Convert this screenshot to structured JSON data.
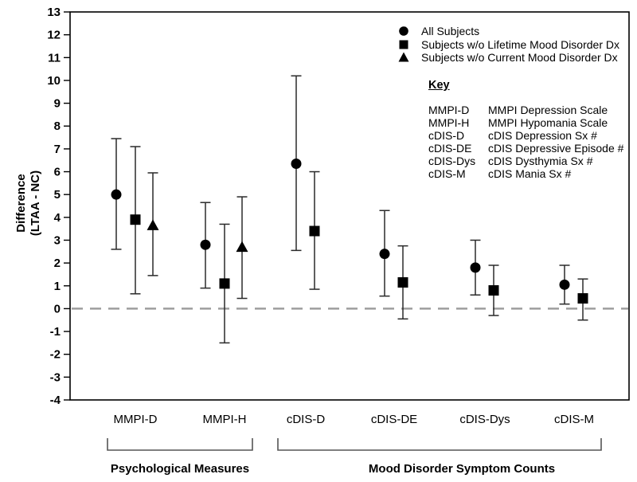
{
  "chart_data": {
    "type": "scatter",
    "subtype": "point-estimates-with-error-bars",
    "title": "",
    "ylabel_lines": [
      "Difference",
      "(LTAA - NC)"
    ],
    "ylim": [
      -4,
      13
    ],
    "ytick_step": 1,
    "grid": false,
    "zero_line": {
      "y": 0,
      "style": "dashed"
    },
    "legend_position": "top-right-inside",
    "categories": [
      "MMPI-D",
      "MMPI-H",
      "cDIS-D",
      "cDIS-DE",
      "cDIS-Dys",
      "cDIS-M"
    ],
    "series": [
      {
        "name": "All Subjects",
        "marker": "circle",
        "values": [
          5.0,
          2.8,
          6.35,
          2.4,
          1.8,
          1.05
        ],
        "ci_low": [
          2.6,
          0.9,
          2.55,
          0.55,
          0.6,
          0.2
        ],
        "ci_high": [
          7.45,
          4.65,
          10.2,
          4.3,
          3.0,
          1.9
        ]
      },
      {
        "name": "Subjects w/o Lifetime Mood Disorder Dx",
        "marker": "square",
        "values": [
          3.9,
          1.1,
          3.4,
          1.15,
          0.8,
          0.45
        ],
        "ci_low": [
          0.65,
          -1.5,
          0.85,
          -0.45,
          -0.3,
          -0.5
        ],
        "ci_high": [
          7.1,
          3.7,
          6.0,
          2.75,
          1.9,
          1.3
        ]
      },
      {
        "name": "Subjects w/o Current Mood Disorder Dx",
        "marker": "triangle",
        "values": [
          3.65,
          2.7,
          null,
          null,
          null,
          null
        ],
        "ci_low": [
          1.45,
          0.45,
          null,
          null,
          null,
          null
        ],
        "ci_high": [
          5.95,
          4.9,
          null,
          null,
          null,
          null
        ]
      }
    ],
    "groups": [
      {
        "label": "Psychological Measures",
        "categories": [
          "MMPI-D",
          "MMPI-H"
        ]
      },
      {
        "label": "Mood Disorder Symptom Counts",
        "categories": [
          "cDIS-D",
          "cDIS-DE",
          "cDIS-Dys",
          "cDIS-M"
        ]
      }
    ]
  },
  "key": {
    "title": "Key",
    "entries": [
      {
        "abbr": "MMPI-D",
        "desc": "MMPI Depression Scale"
      },
      {
        "abbr": "MMPI-H",
        "desc": "MMPI Hypomania Scale"
      },
      {
        "abbr": "cDIS-D",
        "desc": "cDIS Depression Sx #"
      },
      {
        "abbr": "cDIS-DE",
        "desc": "cDIS Depressive Episode #"
      },
      {
        "abbr": "cDIS-Dys",
        "desc": "cDIS Dysthymia Sx #"
      },
      {
        "abbr": "cDIS-M",
        "desc": "cDIS Mania Sx #"
      }
    ]
  },
  "colors": {
    "marker": "#000000",
    "axis": "#000000",
    "error_bar": "#2a2a2a",
    "zero_line": "#9e9e9e",
    "bracket": "#555555",
    "background": "#ffffff"
  }
}
